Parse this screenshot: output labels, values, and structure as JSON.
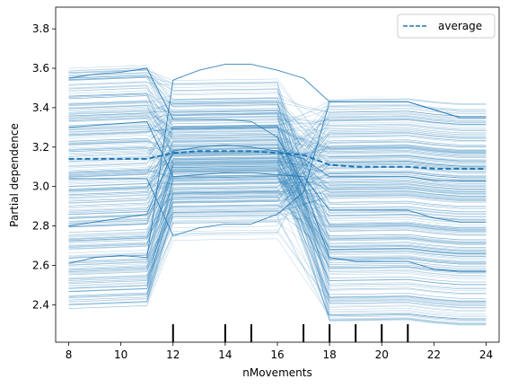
{
  "chart_data": {
    "type": "line",
    "title": "",
    "xlabel": "nMovements",
    "ylabel": "Partial dependence",
    "xlim": [
      7.5,
      24.5
    ],
    "ylim": [
      2.21,
      3.91
    ],
    "xticks": [
      8,
      10,
      12,
      14,
      16,
      18,
      20,
      22,
      24
    ],
    "yticks": [
      2.4,
      2.6,
      2.8,
      3.0,
      3.2,
      3.4,
      3.6,
      3.8
    ],
    "x": [
      8,
      9,
      10,
      11,
      12,
      13,
      14,
      15,
      16,
      17,
      18,
      19,
      20,
      21,
      22,
      23,
      24
    ],
    "rug_x": [
      12,
      14,
      15,
      17,
      18,
      19,
      20,
      21
    ],
    "individual_color": "#1f77b4",
    "legend": {
      "entries": [
        "average"
      ],
      "position": "top-right"
    },
    "series": [
      {
        "name": "average",
        "style": "dashed",
        "values": [
          3.14,
          3.14,
          3.14,
          3.14,
          3.17,
          3.18,
          3.18,
          3.18,
          3.17,
          3.16,
          3.11,
          3.1,
          3.1,
          3.1,
          3.09,
          3.09,
          3.09
        ]
      }
    ],
    "highlighted_ice_lines": [
      [
        2.61,
        2.64,
        2.65,
        2.64,
        3.54,
        3.59,
        3.62,
        3.62,
        3.59,
        3.55,
        3.43,
        3.43,
        3.43,
        3.43,
        3.39,
        3.35,
        3.35
      ],
      [
        3.04,
        3.04,
        3.04,
        3.04,
        2.75,
        2.79,
        2.81,
        2.81,
        2.86,
        2.97,
        3.43,
        3.43,
        3.43,
        3.43,
        3.39,
        3.35,
        3.35
      ],
      [
        3.55,
        3.57,
        3.58,
        3.6,
        3.34,
        3.34,
        3.34,
        3.33,
        3.25,
        3.0,
        2.64,
        2.62,
        2.62,
        2.62,
        2.58,
        2.57,
        2.57
      ],
      [
        2.8,
        2.82,
        2.84,
        2.86,
        3.18,
        3.2,
        3.21,
        3.2,
        3.18,
        3.14,
        3.05,
        3.05,
        3.05,
        3.05,
        3.03,
        3.03,
        3.03
      ],
      [
        3.3,
        3.31,
        3.32,
        3.33,
        3.05,
        3.06,
        3.07,
        3.07,
        3.06,
        3.05,
        2.88,
        2.88,
        2.88,
        2.88,
        2.84,
        2.82,
        2.82
      ]
    ],
    "ice_band": {
      "count": 300,
      "seed": 11,
      "low_range": [
        2.38,
        3.6
      ],
      "mid_range": [
        2.72,
        3.55
      ],
      "high_range": [
        2.31,
        3.45
      ]
    }
  }
}
